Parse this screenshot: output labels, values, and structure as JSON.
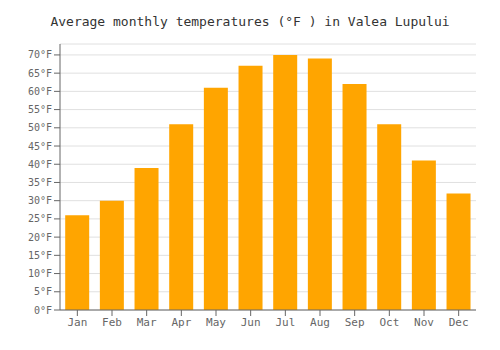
{
  "chart_data": {
    "type": "bar",
    "title": "Average monthly temperatures (°F ) in Valea Lupului",
    "categories": [
      "Jan",
      "Feb",
      "Mar",
      "Apr",
      "May",
      "Jun",
      "Jul",
      "Aug",
      "Sep",
      "Oct",
      "Nov",
      "Dec"
    ],
    "values": [
      26,
      30,
      39,
      51,
      61,
      67,
      70,
      69,
      62,
      51,
      41,
      32
    ],
    "color": "#FFA500",
    "ylim": [
      0,
      73
    ],
    "yticks": [
      {
        "value": 0,
        "label": "0°F"
      },
      {
        "value": 5,
        "label": "5°F"
      },
      {
        "value": 10,
        "label": "10°F"
      },
      {
        "value": 15,
        "label": "15°F"
      },
      {
        "value": 20,
        "label": "20°F"
      },
      {
        "value": 25,
        "label": "25°F"
      },
      {
        "value": 30,
        "label": "30°F"
      },
      {
        "value": 35,
        "label": "35°F"
      },
      {
        "value": 40,
        "label": "40°F"
      },
      {
        "value": 45,
        "label": "45°F"
      },
      {
        "value": 50,
        "label": "50°F"
      },
      {
        "value": 55,
        "label": "55°F"
      },
      {
        "value": 60,
        "label": "60°F"
      },
      {
        "value": 65,
        "label": "65°F"
      },
      {
        "value": 70,
        "label": "70°F"
      }
    ],
    "grid": true
  }
}
